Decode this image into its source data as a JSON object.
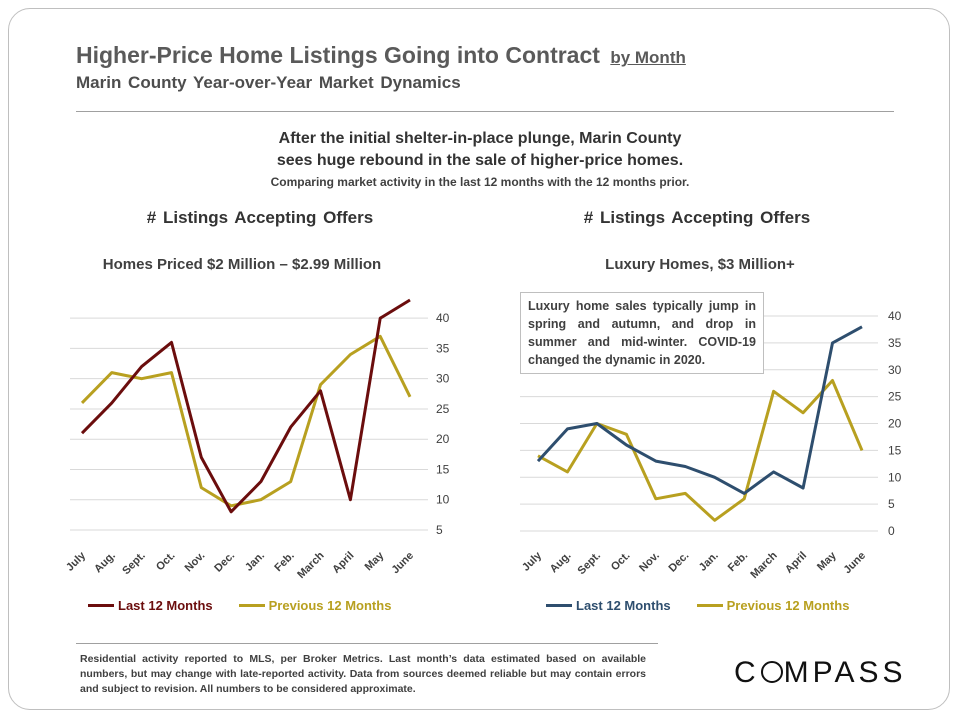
{
  "header": {
    "title": "Higher-Price Home Listings Going into Contract",
    "title_suffix": "by Month",
    "subtitle": "Marin County Year-over-Year Market Dynamics"
  },
  "headline": {
    "line1": "After the initial shelter-in-place plunge, Marin County",
    "line2": "sees huge rebound in the sale of higher-price homes.",
    "note": "Comparing market activity in the last 12 months with the 12 months prior."
  },
  "annotation": "Luxury home sales typically jump in spring and autumn, and drop in summer and mid-winter. COVID-19 changed the dynamic in 2020.",
  "footer": "Residential activity reported to MLS, per Broker Metrics. Last month’s data estimated based on available numbers, but may change with late-reported activity. Data from sources deemed reliable but may contain errors and subject to revision. All numbers to be considered approximate.",
  "logo": {
    "pre": "C",
    "post": "MPASS"
  },
  "chart_data": [
    {
      "type": "line",
      "title": "# Listings Accepting Offers",
      "subtitle": "Homes Priced $2 Million – $2.99 Million",
      "categories": [
        "July",
        "Aug.",
        "Sept.",
        "Oct.",
        "Nov.",
        "Dec.",
        "Jan.",
        "Feb.",
        "March",
        "April",
        "May",
        "June"
      ],
      "ylim": [
        5,
        43
      ],
      "yticks": [
        5,
        10,
        15,
        20,
        25,
        30,
        35,
        40
      ],
      "series": [
        {
          "name": "Last 12 Months",
          "color": "#6b0d0d",
          "values": [
            21,
            26,
            32,
            36,
            17,
            8,
            13,
            22,
            28,
            10,
            40,
            43
          ]
        },
        {
          "name": "Previous 12 Months",
          "color": "#b8a020",
          "values": [
            26,
            31,
            30,
            31,
            12,
            9,
            10,
            13,
            29,
            34,
            37,
            27
          ]
        }
      ]
    },
    {
      "type": "line",
      "title": "# Listings Accepting Offers",
      "subtitle": "Luxury Homes, $3 Million+",
      "categories": [
        "July",
        "Aug.",
        "Sept.",
        "Oct.",
        "Nov.",
        "Dec.",
        "Jan.",
        "Feb.",
        "March",
        "April",
        "May",
        "June"
      ],
      "ylim": [
        0,
        40
      ],
      "yticks": [
        0,
        5,
        10,
        15,
        20,
        25,
        30,
        35,
        40
      ],
      "series": [
        {
          "name": "Last 12 Months",
          "color": "#2e4e6e",
          "values": [
            13,
            19,
            20,
            16,
            13,
            12,
            10,
            7,
            11,
            8,
            35,
            38
          ]
        },
        {
          "name": "Previous 12 Months",
          "color": "#b8a020",
          "values": [
            14,
            11,
            20,
            18,
            6,
            7,
            2,
            6,
            26,
            22,
            28,
            15
          ]
        }
      ]
    }
  ]
}
